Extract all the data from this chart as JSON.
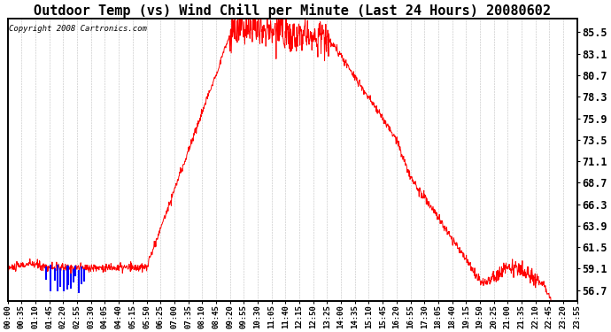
{
  "title": "Outdoor Temp (vs) Wind Chill per Minute (Last 24 Hours) 20080602",
  "copyright": "Copyright 2008 Cartronics.com",
  "background_color": "#ffffff",
  "plot_bg_color": "#ffffff",
  "grid_color": "#b0b0b0",
  "line_color_red": "#ff0000",
  "line_color_blue": "#0000ff",
  "y_ticks": [
    56.7,
    59.1,
    61.5,
    63.9,
    66.3,
    68.7,
    71.1,
    73.5,
    75.9,
    78.3,
    80.7,
    83.1,
    85.5
  ],
  "ylim": [
    55.5,
    87.0
  ],
  "x_labels": [
    "00:00",
    "00:35",
    "01:10",
    "01:45",
    "02:20",
    "02:55",
    "03:30",
    "04:05",
    "04:40",
    "05:15",
    "05:50",
    "06:25",
    "07:00",
    "07:35",
    "08:10",
    "08:45",
    "09:20",
    "09:55",
    "10:30",
    "11:05",
    "11:40",
    "12:15",
    "12:50",
    "13:25",
    "14:00",
    "14:35",
    "15:10",
    "15:45",
    "16:20",
    "16:55",
    "17:30",
    "18:05",
    "18:40",
    "19:15",
    "19:50",
    "20:25",
    "21:00",
    "21:35",
    "22:10",
    "22:45",
    "23:20",
    "23:55"
  ],
  "title_fontsize": 11,
  "copyright_fontsize": 6.5,
  "tick_fontsize": 6.5,
  "ytick_fontsize": 8.5
}
